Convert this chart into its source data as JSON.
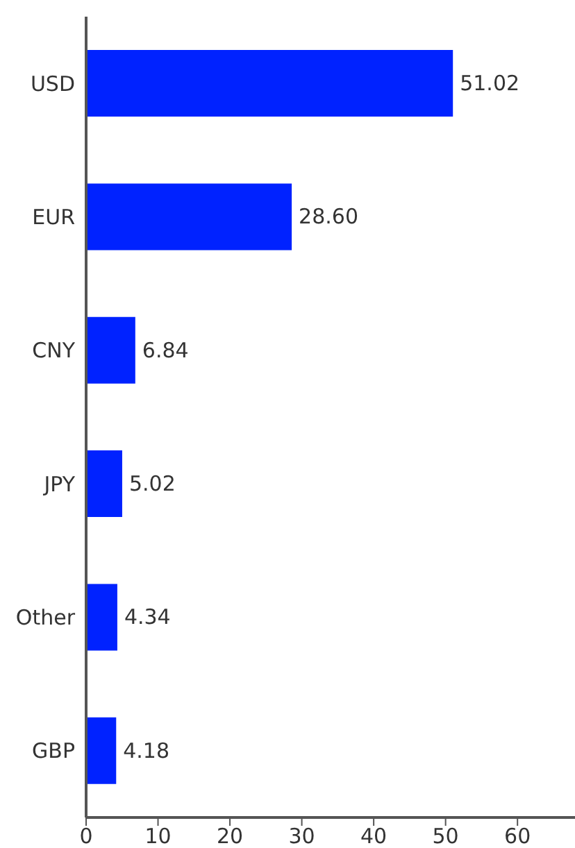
{
  "chart_data": {
    "type": "bar",
    "orientation": "horizontal",
    "categories": [
      "USD",
      "EUR",
      "CNY",
      "JPY",
      "Other",
      "GBP"
    ],
    "values": [
      51.02,
      28.6,
      6.84,
      5.02,
      4.34,
      4.18
    ],
    "value_labels": [
      "51.02",
      "28.60",
      "6.84",
      "5.02",
      "4.34",
      "4.18"
    ],
    "color": "#0022ff",
    "xlim": [
      0,
      68
    ],
    "xticks": [
      0,
      10,
      20,
      30,
      40,
      50,
      60
    ],
    "grid": false,
    "legend": false
  }
}
